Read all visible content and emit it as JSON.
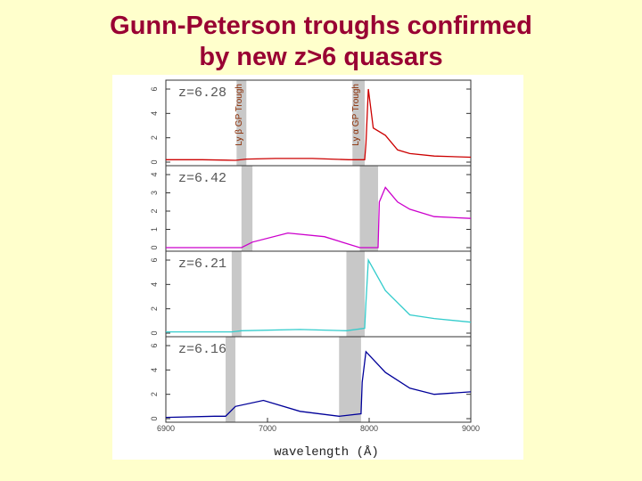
{
  "slide": {
    "title_line1": "Gunn-Peterson troughs confirmed",
    "title_line2": "by new z>6 quasars"
  },
  "chart_data": {
    "type": "line",
    "xlabel": "wavelength (Å)",
    "x_ticks": [
      "6900",
      "7000",
      "8000",
      "9000"
    ],
    "x_range": [
      6900,
      9400
    ],
    "troughs": [
      {
        "label": "Ly β GP Trough",
        "panel_index": 0,
        "x_range": [
          7480,
          7560
        ]
      },
      {
        "label": "Ly α GP Trough",
        "panel_index": 0,
        "x_range": [
          8430,
          8530
        ]
      }
    ],
    "panels": [
      {
        "z_label": "z=6.28",
        "color": "#cc0000",
        "y_ticks": [
          "0",
          "2",
          "4",
          "6"
        ],
        "y_range": [
          0,
          6
        ],
        "gray_bands": [
          [
            7480,
            7560
          ],
          [
            8430,
            8530
          ]
        ],
        "points": [
          [
            6900,
            0.2
          ],
          [
            7200,
            0.2
          ],
          [
            7470,
            0.15
          ],
          [
            7560,
            0.25
          ],
          [
            7800,
            0.3
          ],
          [
            8100,
            0.3
          ],
          [
            8400,
            0.2
          ],
          [
            8530,
            0.2
          ],
          [
            8540,
            1.5
          ],
          [
            8560,
            6.0
          ],
          [
            8600,
            2.8
          ],
          [
            8700,
            2.2
          ],
          [
            8800,
            1.0
          ],
          [
            8900,
            0.7
          ],
          [
            9100,
            0.5
          ],
          [
            9400,
            0.4
          ]
        ]
      },
      {
        "z_label": "z=6.42",
        "color": "#cc00cc",
        "y_ticks": [
          "0",
          "1",
          "2",
          "3",
          "4"
        ],
        "y_range": [
          0,
          4
        ],
        "gray_bands": [
          [
            7520,
            7610
          ],
          [
            8490,
            8640
          ]
        ],
        "points": [
          [
            6900,
            0.0
          ],
          [
            7300,
            0.0
          ],
          [
            7520,
            0.0
          ],
          [
            7610,
            0.3
          ],
          [
            7900,
            0.8
          ],
          [
            8200,
            0.6
          ],
          [
            8490,
            0.0
          ],
          [
            8640,
            0.0
          ],
          [
            8650,
            2.5
          ],
          [
            8700,
            3.3
          ],
          [
            8800,
            2.5
          ],
          [
            8900,
            2.1
          ],
          [
            9100,
            1.7
          ],
          [
            9400,
            1.6
          ]
        ]
      },
      {
        "z_label": "z=6.21",
        "color": "#33cccc",
        "y_ticks": [
          "0",
          "2",
          "4",
          "6"
        ],
        "y_range": [
          0,
          6
        ],
        "gray_bands": [
          [
            7440,
            7520
          ],
          [
            8380,
            8530
          ]
        ],
        "points": [
          [
            6900,
            0.1
          ],
          [
            7300,
            0.1
          ],
          [
            7440,
            0.1
          ],
          [
            7520,
            0.2
          ],
          [
            8000,
            0.3
          ],
          [
            8380,
            0.2
          ],
          [
            8530,
            0.4
          ],
          [
            8540,
            2.5
          ],
          [
            8560,
            6.0
          ],
          [
            8700,
            3.5
          ],
          [
            8900,
            1.5
          ],
          [
            9100,
            1.2
          ],
          [
            9400,
            0.9
          ]
        ]
      },
      {
        "z_label": "z=6.16",
        "color": "#000099",
        "y_ticks": [
          "0",
          "2",
          "4",
          "6"
        ],
        "y_range": [
          0,
          6
        ],
        "gray_bands": [
          [
            7390,
            7470
          ],
          [
            8320,
            8500
          ]
        ],
        "points": [
          [
            6900,
            0.1
          ],
          [
            7300,
            0.2
          ],
          [
            7390,
            0.2
          ],
          [
            7470,
            1.0
          ],
          [
            7700,
            1.5
          ],
          [
            8000,
            0.6
          ],
          [
            8320,
            0.2
          ],
          [
            8500,
            0.4
          ],
          [
            8510,
            3.0
          ],
          [
            8540,
            5.5
          ],
          [
            8700,
            3.8
          ],
          [
            8900,
            2.5
          ],
          [
            9100,
            2.0
          ],
          [
            9400,
            2.2
          ]
        ]
      }
    ]
  }
}
